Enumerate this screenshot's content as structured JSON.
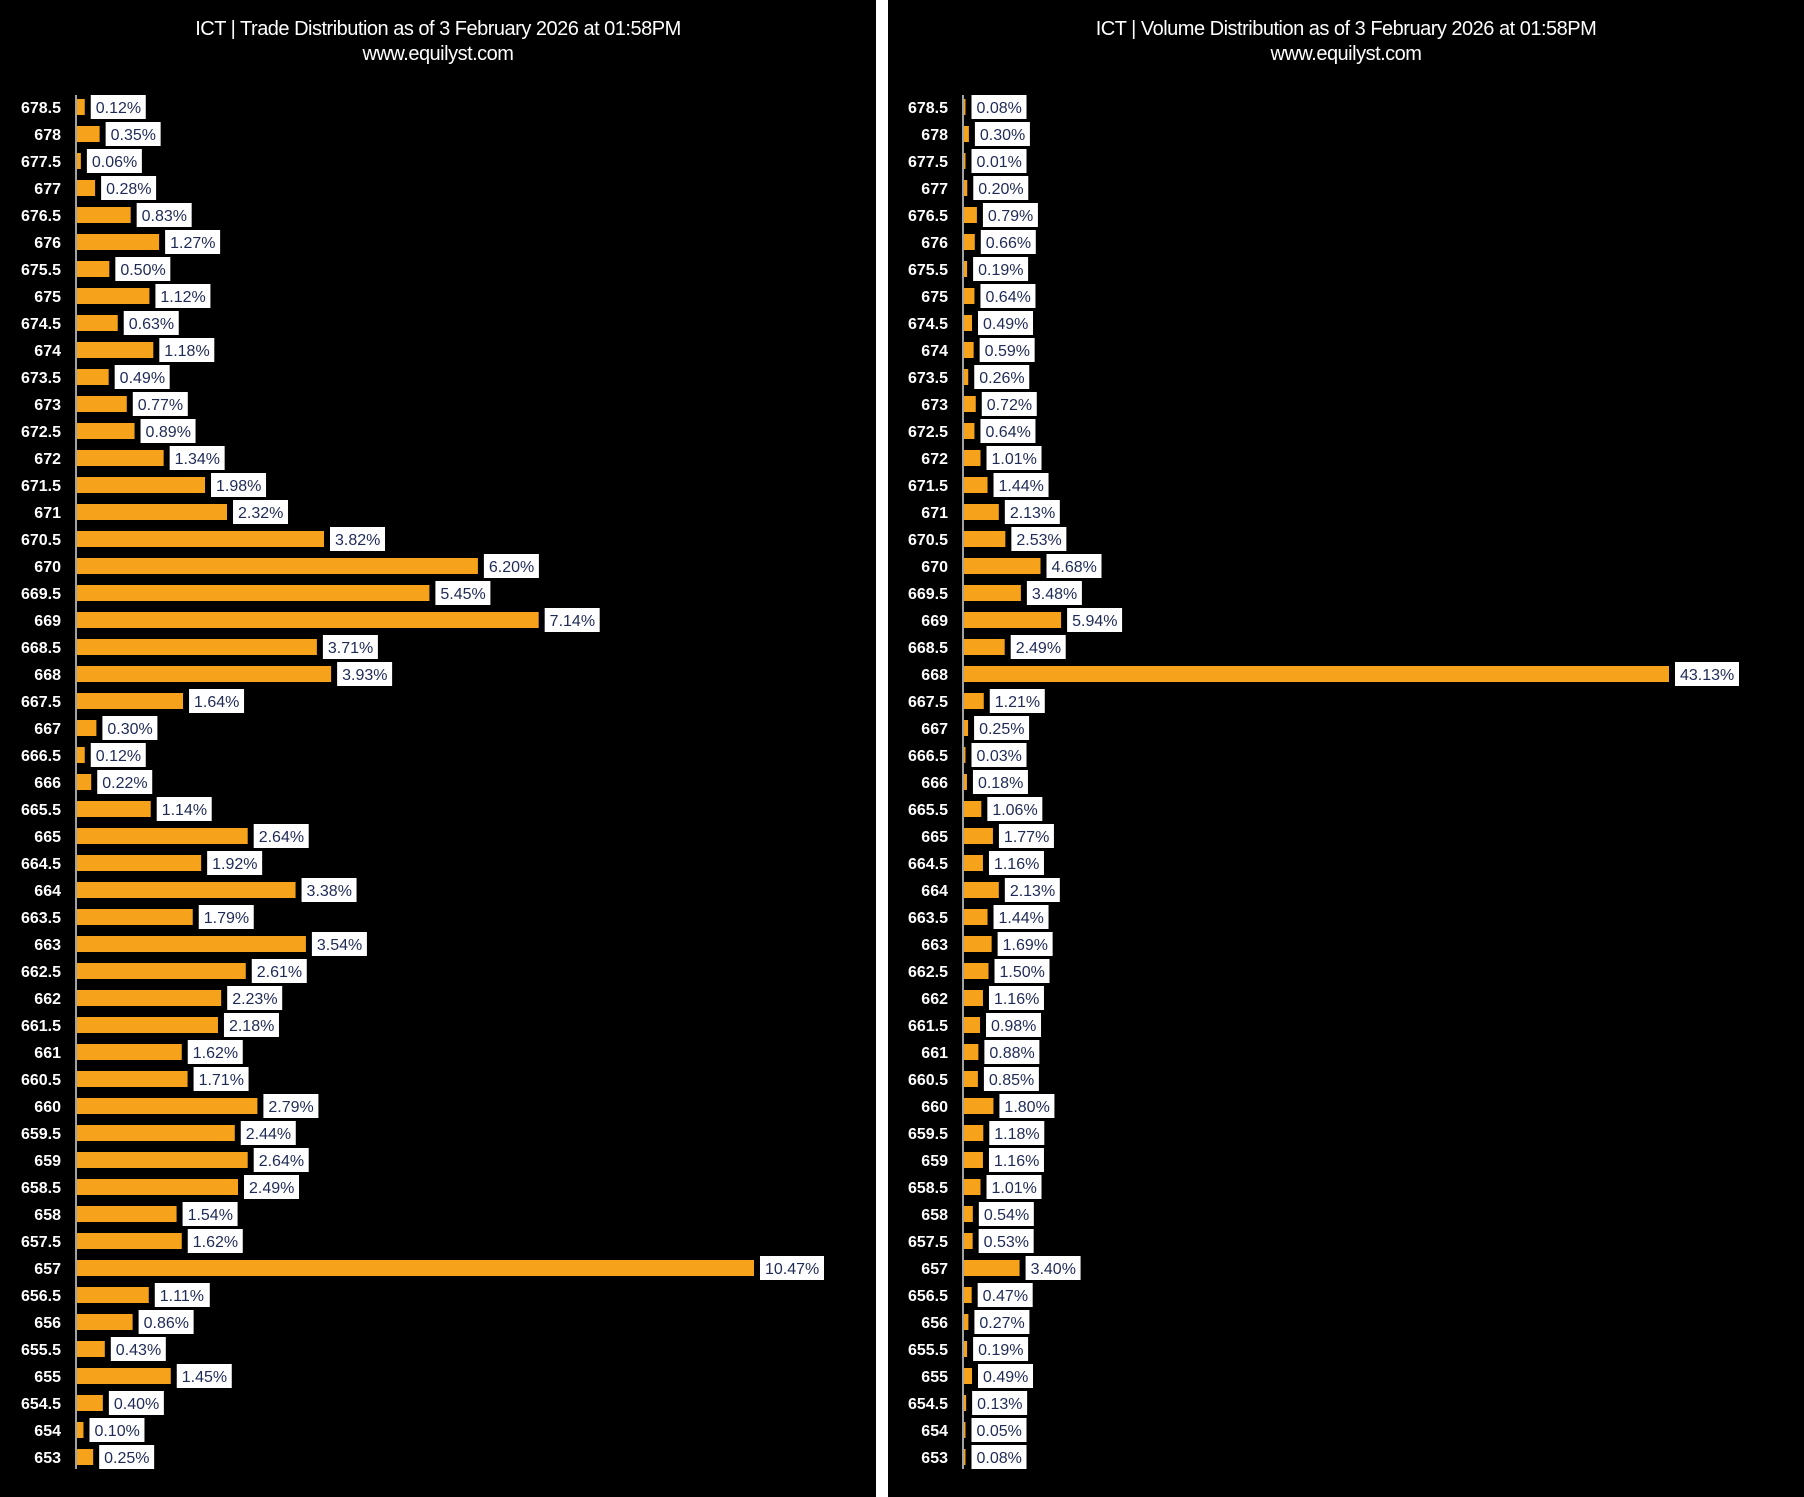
{
  "chart_data": [
    {
      "type": "bar",
      "orientation": "horizontal",
      "title": "ICT | Trade Distribution as of 3 February 2026 at 01:58PM",
      "subtitle": "www.equilyst.com",
      "bar_color": "#F7A21B",
      "categories": [
        "678.5",
        "678",
        "677.5",
        "677",
        "676.5",
        "676",
        "675.5",
        "675",
        "674.5",
        "674",
        "673.5",
        "673",
        "672.5",
        "672",
        "671.5",
        "671",
        "670.5",
        "670",
        "669.5",
        "669",
        "668.5",
        "668",
        "667.5",
        "667",
        "666.5",
        "666",
        "665.5",
        "665",
        "664.5",
        "664",
        "663.5",
        "663",
        "662.5",
        "662",
        "661.5",
        "661",
        "660.5",
        "660",
        "659.5",
        "659",
        "658.5",
        "658",
        "657.5",
        "657",
        "656.5",
        "656",
        "655.5",
        "655",
        "654.5",
        "654",
        "653"
      ],
      "values": [
        0.12,
        0.35,
        0.06,
        0.28,
        0.83,
        1.27,
        0.5,
        1.12,
        0.63,
        1.18,
        0.49,
        0.77,
        0.89,
        1.34,
        1.98,
        2.32,
        3.82,
        6.2,
        5.45,
        7.14,
        3.71,
        3.93,
        1.64,
        0.3,
        0.12,
        0.22,
        1.14,
        2.64,
        1.92,
        3.38,
        1.79,
        3.54,
        2.61,
        2.23,
        2.18,
        1.62,
        1.71,
        2.79,
        2.44,
        2.64,
        2.49,
        1.54,
        1.62,
        10.47,
        1.11,
        0.86,
        0.43,
        1.45,
        0.4,
        0.1,
        0.25
      ],
      "xlim": [
        0,
        10.47
      ],
      "unit": "%"
    },
    {
      "type": "bar",
      "orientation": "horizontal",
      "title": "ICT | Volume Distribution as of 3 February 2026 at 01:58PM",
      "subtitle": "www.equilyst.com",
      "bar_color": "#F7A21B",
      "categories": [
        "678.5",
        "678",
        "677.5",
        "677",
        "676.5",
        "676",
        "675.5",
        "675",
        "674.5",
        "674",
        "673.5",
        "673",
        "672.5",
        "672",
        "671.5",
        "671",
        "670.5",
        "670",
        "669.5",
        "669",
        "668.5",
        "668",
        "667.5",
        "667",
        "666.5",
        "666",
        "665.5",
        "665",
        "664.5",
        "664",
        "663.5",
        "663",
        "662.5",
        "662",
        "661.5",
        "661",
        "660.5",
        "660",
        "659.5",
        "659",
        "658.5",
        "658",
        "657.5",
        "657",
        "656.5",
        "656",
        "655.5",
        "655",
        "654.5",
        "654",
        "653"
      ],
      "values": [
        0.08,
        0.3,
        0.01,
        0.2,
        0.79,
        0.66,
        0.19,
        0.64,
        0.49,
        0.59,
        0.26,
        0.72,
        0.64,
        1.01,
        1.44,
        2.13,
        2.53,
        4.68,
        3.48,
        5.94,
        2.49,
        43.13,
        1.21,
        0.25,
        0.03,
        0.18,
        1.06,
        1.77,
        1.16,
        2.13,
        1.44,
        1.69,
        1.5,
        1.16,
        0.98,
        0.88,
        0.85,
        1.8,
        1.18,
        1.16,
        1.01,
        0.54,
        0.53,
        3.4,
        0.47,
        0.27,
        0.19,
        0.49,
        0.13,
        0.05,
        0.08
      ],
      "xlim": [
        0,
        43.13
      ],
      "unit": "%"
    }
  ]
}
